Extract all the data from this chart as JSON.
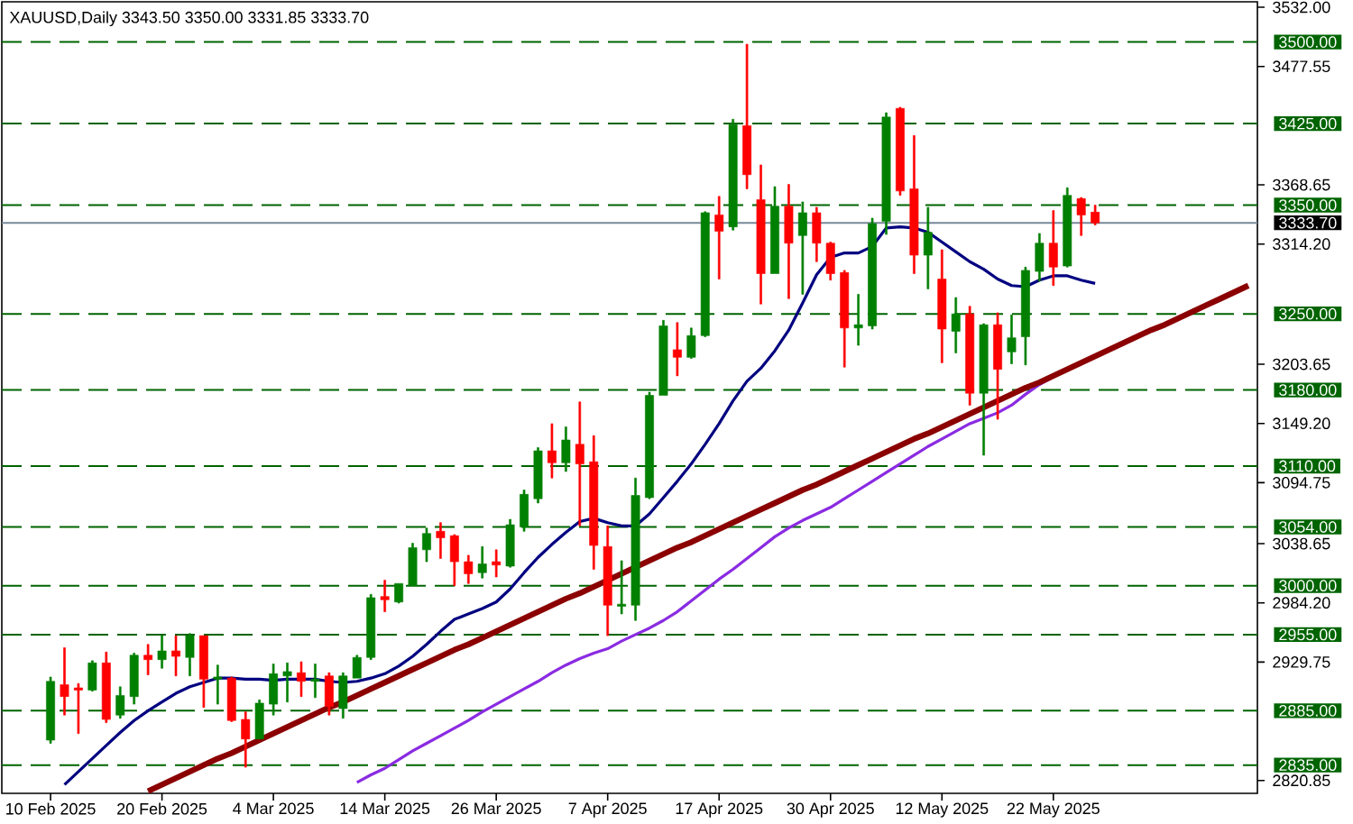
{
  "chart_data": {
    "type": "candlestick",
    "title": "XAUUSD,Daily 3343.50 3350.00 3331.85 3333.70",
    "categories": [
      "10 Feb 2025",
      null,
      null,
      null,
      null,
      null,
      null,
      null,
      "20 Feb 2025",
      null,
      null,
      null,
      null,
      null,
      null,
      null,
      "4 Mar 2025",
      null,
      null,
      null,
      null,
      null,
      null,
      null,
      "14 Mar 2025",
      null,
      null,
      null,
      null,
      null,
      null,
      null,
      "26 Mar 2025",
      null,
      null,
      null,
      null,
      null,
      null,
      null,
      "7 Apr 2025",
      null,
      null,
      null,
      null,
      null,
      null,
      null,
      "17 Apr 2025",
      null,
      null,
      null,
      null,
      null,
      null,
      null,
      "30 Apr 2025",
      null,
      null,
      null,
      null,
      null,
      null,
      null,
      "12 May 2025",
      null,
      null,
      null,
      null,
      null,
      null,
      null,
      "22 May 2025",
      null,
      null,
      null,
      null,
      null,
      null,
      null,
      null,
      null,
      null,
      null,
      null,
      null,
      null
    ],
    "ohlc": [
      [
        2858,
        2916,
        2855,
        2912
      ],
      [
        2909,
        2943,
        2881,
        2898
      ],
      [
        2906,
        2910,
        2864,
        2904
      ],
      [
        2904,
        2931,
        2903,
        2929
      ],
      [
        2929,
        2939,
        2874,
        2877
      ],
      [
        2881,
        2907,
        2878,
        2899
      ],
      [
        2898,
        2938,
        2891,
        2936
      ],
      [
        2936,
        2946,
        2918,
        2932
      ],
      [
        2932,
        2954,
        2924,
        2940
      ],
      [
        2940,
        2954,
        2917,
        2935
      ],
      [
        2934,
        2956,
        2917,
        2954
      ],
      [
        2954,
        2954,
        2888,
        2914
      ],
      [
        2914,
        2927,
        2891,
        2916
      ],
      [
        2915,
        2916,
        2875,
        2876
      ],
      [
        2877,
        2884,
        2833,
        2859
      ],
      [
        2859,
        2895,
        2859,
        2892
      ],
      [
        2891,
        2928,
        2881,
        2919
      ],
      [
        2917,
        2929,
        2893,
        2921
      ],
      [
        2920,
        2930,
        2898,
        2912
      ],
      [
        2912,
        2928,
        2897,
        2914
      ],
      [
        2917,
        2920,
        2881,
        2889
      ],
      [
        2887,
        2920,
        2878,
        2917
      ],
      [
        2915,
        2936,
        2915,
        2934
      ],
      [
        2934,
        2992,
        2932,
        2989
      ],
      [
        2990,
        3005,
        2976,
        2987
      ],
      [
        2985,
        3002,
        2984,
        3002
      ],
      [
        3000,
        3039,
        3000,
        3035
      ],
      [
        3033,
        3053,
        3022,
        3048
      ],
      [
        3050,
        3058,
        3025,
        3044
      ],
      [
        3046,
        3047,
        3000,
        3022
      ],
      [
        3022,
        3028,
        3002,
        3011
      ],
      [
        3012,
        3036,
        3007,
        3020
      ],
      [
        3022,
        3033,
        3008,
        3019
      ],
      [
        3018,
        3061,
        3017,
        3056
      ],
      [
        3054,
        3088,
        3050,
        3084
      ],
      [
        3080,
        3127,
        3076,
        3124
      ],
      [
        3124,
        3149,
        3099,
        3113
      ],
      [
        3113,
        3146,
        3105,
        3134
      ],
      [
        3130,
        3169,
        3055,
        3112
      ],
      [
        3114,
        3138,
        3015,
        3037
      ],
      [
        3036,
        3055,
        2954,
        2982
      ],
      [
        2981,
        3023,
        2974,
        2983
      ],
      [
        2982,
        3099,
        2968,
        3083
      ],
      [
        3081,
        3178,
        3080,
        3175
      ],
      [
        3175,
        3244,
        3175,
        3239
      ],
      [
        3217,
        3242,
        3193,
        3210
      ],
      [
        3210,
        3237,
        3209,
        3230
      ],
      [
        3230,
        3344,
        3229,
        3343
      ],
      [
        3341,
        3358,
        3282,
        3326
      ],
      [
        3330,
        3429,
        3327,
        3424
      ],
      [
        3423,
        3498,
        3365,
        3378
      ],
      [
        3355,
        3387,
        3259,
        3287
      ],
      [
        3287,
        3367,
        3287,
        3349
      ],
      [
        3349,
        3369,
        3264,
        3315
      ],
      [
        3322,
        3353,
        3268,
        3343
      ],
      [
        3343,
        3348,
        3298,
        3315
      ],
      [
        3315,
        3316,
        3281,
        3287
      ],
      [
        3288,
        3290,
        3201,
        3237
      ],
      [
        3237,
        3268,
        3221,
        3240
      ],
      [
        3239,
        3338,
        3236,
        3333
      ],
      [
        3335,
        3435,
        3323,
        3431
      ],
      [
        3439,
        3440,
        3359,
        3363
      ],
      [
        3365,
        3414,
        3287,
        3304
      ],
      [
        3304,
        3348,
        3273,
        3325
      ],
      [
        3282,
        3309,
        3205,
        3236
      ],
      [
        3234,
        3265,
        3214,
        3250
      ],
      [
        3250,
        3257,
        3166,
        3177
      ],
      [
        3177,
        3241,
        3120,
        3240
      ],
      [
        3240,
        3251,
        3153,
        3199
      ],
      [
        3215,
        3249,
        3204,
        3228
      ],
      [
        3229,
        3293,
        3203,
        3290
      ],
      [
        3289,
        3324,
        3280,
        3315
      ],
      [
        3315,
        3345,
        3276,
        3293
      ],
      [
        3294,
        3366,
        3293,
        3359
      ],
      [
        3356,
        3357,
        3322,
        3341
      ],
      [
        3343.5,
        3350.0,
        3331.85,
        3333.7
      ],
      null,
      null,
      null,
      null,
      null,
      null,
      null,
      null,
      null,
      null,
      null
    ],
    "colors": [
      "#008000",
      "#ff0000",
      "#ff0000",
      "#008000",
      "#ff0000",
      "#008000",
      "#008000",
      "#ff0000",
      "#008000",
      "#ff0000",
      "#008000",
      "#ff0000",
      "#008000",
      "#ff0000",
      "#ff0000",
      "#008000",
      "#008000",
      "#008000",
      "#ff0000",
      "#008000",
      "#ff0000",
      "#008000",
      "#008000",
      "#008000",
      "#ff0000",
      "#008000",
      "#008000",
      "#008000",
      "#ff0000",
      "#ff0000",
      "#ff0000",
      "#008000",
      "#ff0000",
      "#008000",
      "#008000",
      "#008000",
      "#ff0000",
      "#008000",
      "#ff0000",
      "#ff0000",
      "#ff0000",
      "#008000",
      "#008000",
      "#008000",
      "#008000",
      "#ff0000",
      "#008000",
      "#008000",
      "#ff0000",
      "#008000",
      "#ff0000",
      "#ff0000",
      "#008000",
      "#ff0000",
      "#008000",
      "#ff0000",
      "#ff0000",
      "#ff0000",
      "#008000",
      "#008000",
      "#008000",
      "#ff0000",
      "#ff0000",
      "#008000",
      "#ff0000",
      "#008000",
      "#ff0000",
      "#008000",
      "#ff0000",
      "#008000",
      "#008000",
      "#008000",
      "#ff0000",
      "#008000",
      "#ff0000",
      "#ff0000",
      null,
      null,
      null,
      null,
      null,
      null,
      null,
      null,
      null,
      null,
      null
    ],
    "series": [
      {
        "type": "line",
        "color": "#000080",
        "values": [
          null,
          2817,
          2829,
          2841,
          2853,
          2865,
          2876,
          2885,
          2893,
          2901,
          2907,
          2911,
          2915,
          2915,
          2914,
          2914,
          2913,
          2914,
          2914,
          2914,
          2912,
          2911,
          2912,
          2915,
          2919,
          2926,
          2935,
          2946,
          2958,
          2969,
          2974,
          2979,
          2985,
          2997,
          3012,
          3026,
          3038,
          3049,
          3059,
          3062,
          3058,
          3055,
          3055,
          3066,
          3081,
          3096,
          3112,
          3130,
          3149,
          3170,
          3188,
          3200,
          3216,
          3235,
          3260,
          3286,
          3302,
          3306,
          3306,
          3312,
          3329,
          3330,
          3329,
          3325,
          3316,
          3307,
          3298,
          3291,
          3282,
          3276,
          3275,
          3281,
          3285,
          3285,
          3281,
          3278,
          null,
          null,
          null,
          null,
          null,
          null,
          null,
          null,
          null,
          null,
          null
        ]
      },
      {
        "type": "line",
        "color": "#8a2be2",
        "values": [
          null,
          null,
          null,
          null,
          null,
          null,
          null,
          null,
          null,
          null,
          null,
          null,
          null,
          null,
          null,
          null,
          null,
          null,
          null,
          null,
          null,
          null,
          2819,
          2826,
          2832,
          2840,
          2848,
          2855,
          2862,
          2869,
          2876,
          2884,
          2891,
          2898,
          2905,
          2912,
          2920,
          2927,
          2933,
          2938,
          2942,
          2949,
          2955,
          2961,
          2968,
          2976,
          2986,
          2996,
          3006,
          3015,
          3025,
          3035,
          3045,
          3053,
          3060,
          3066,
          3072,
          3080,
          3088,
          3096,
          3104,
          3112,
          3120,
          3128,
          3135,
          3142,
          3149,
          3154,
          3159,
          3166,
          3176,
          3185,
          3192,
          3200,
          null,
          null,
          null,
          null,
          null,
          null,
          null,
          null,
          null,
          null,
          null,
          null,
          null
        ]
      },
      {
        "type": "line",
        "color": "#8b0000",
        "values": [
          null,
          null,
          null,
          null,
          null,
          null,
          null,
          2811,
          2817,
          2823,
          2829,
          2835,
          2841,
          2846,
          2852,
          2858,
          2864,
          2870,
          2876,
          2882,
          2888,
          2893,
          2899,
          2905,
          2911,
          2917,
          2923,
          2929,
          2935,
          2941,
          2946,
          2952,
          2958,
          2964,
          2970,
          2976,
          2982,
          2988,
          2993,
          2999,
          3005,
          3011,
          3017,
          3023,
          3029,
          3035,
          3040,
          3046,
          3052,
          3058,
          3064,
          3070,
          3076,
          3082,
          3088,
          3093,
          3099,
          3105,
          3111,
          3117,
          3123,
          3129,
          3135,
          3140,
          3146,
          3152,
          3158,
          3164,
          3170,
          3176,
          3182,
          3187,
          3193,
          3199,
          3205,
          3211,
          3217,
          3223,
          3229,
          3235,
          3240,
          3246,
          3252,
          3258,
          3264,
          3270,
          3276
        ]
      }
    ],
    "ylim": [
      2809,
      3537
    ],
    "yticks": [
      {
        "value": 3532,
        "label": "3532.00"
      },
      {
        "value": 3477.55,
        "label": "3477.55"
      },
      {
        "value": 3368.65,
        "label": "3368.65"
      },
      {
        "value": 3314.2,
        "label": "3314.20"
      },
      {
        "value": 3203.65,
        "label": "3203.65"
      },
      {
        "value": 3149.2,
        "label": "3149.20"
      },
      {
        "value": 3094.75,
        "label": "3094.75"
      },
      {
        "value": 3038.65,
        "label": "3038.65"
      },
      {
        "value": 2984.2,
        "label": "2984.20"
      },
      {
        "value": 2929.75,
        "label": "2929.75"
      },
      {
        "value": 2820.85,
        "label": "2820.85"
      }
    ],
    "ref_lines": [
      {
        "axis": "y",
        "value": 3500,
        "label": "3500.00",
        "color": "#006400",
        "line_style": "dashed"
      },
      {
        "axis": "y",
        "value": 3425,
        "label": "3425.00",
        "color": "#006400",
        "line_style": "dashed"
      },
      {
        "axis": "y",
        "value": 3350,
        "label": "3350.00",
        "color": "#006400",
        "line_style": "dashed"
      },
      {
        "axis": "y",
        "value": 3333.7,
        "label": "3333.70",
        "color": "#778899",
        "line_style": "solid"
      },
      {
        "axis": "y",
        "value": 3250,
        "label": "3250.00",
        "color": "#006400",
        "line_style": "dashed"
      },
      {
        "axis": "y",
        "value": 3180,
        "label": "3180.00",
        "color": "#006400",
        "line_style": "dashed"
      },
      {
        "axis": "y",
        "value": 3110,
        "label": "3110.00",
        "color": "#006400",
        "line_style": "dashed"
      },
      {
        "axis": "y",
        "value": 3054,
        "label": "3054.00",
        "color": "#006400",
        "line_style": "dashed"
      },
      {
        "axis": "y",
        "value": 3000,
        "label": "3000.00",
        "color": "#006400",
        "line_style": "dashed"
      },
      {
        "axis": "y",
        "value": 2955,
        "label": "2955.00",
        "color": "#006400",
        "line_style": "dashed"
      },
      {
        "axis": "y",
        "value": 2885,
        "label": "2885.00",
        "color": "#006400",
        "line_style": "dashed"
      },
      {
        "axis": "y",
        "value": 2835,
        "label": "2835.00",
        "color": "#006400",
        "line_style": "dashed"
      }
    ]
  }
}
